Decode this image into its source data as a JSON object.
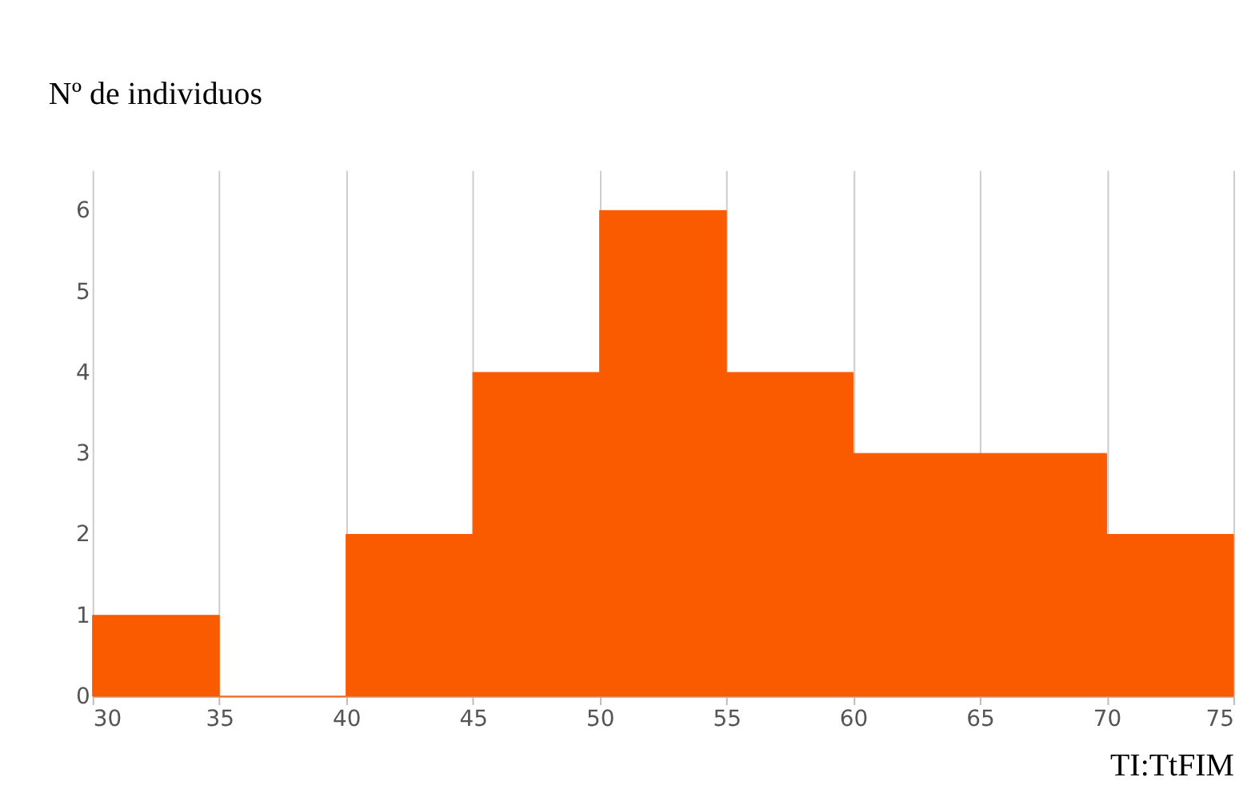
{
  "chart_data": {
    "type": "histogram",
    "xlabel": "TI:TtFIM",
    "ylabel": "Nº de individuos",
    "bins": [
      30,
      35,
      40,
      45,
      50,
      55,
      60,
      65,
      70,
      75
    ],
    "values": [
      1,
      0,
      2,
      4,
      6,
      4,
      3,
      3,
      2
    ],
    "color": "#fa5a00",
    "xlim": [
      30,
      75
    ],
    "xticks": [
      30,
      35,
      40,
      45,
      50,
      55,
      60,
      65,
      70,
      75
    ],
    "ylim": [
      0,
      6.5
    ],
    "yticks": [
      0,
      1,
      2,
      3,
      4,
      5,
      6
    ],
    "grid": "x"
  }
}
